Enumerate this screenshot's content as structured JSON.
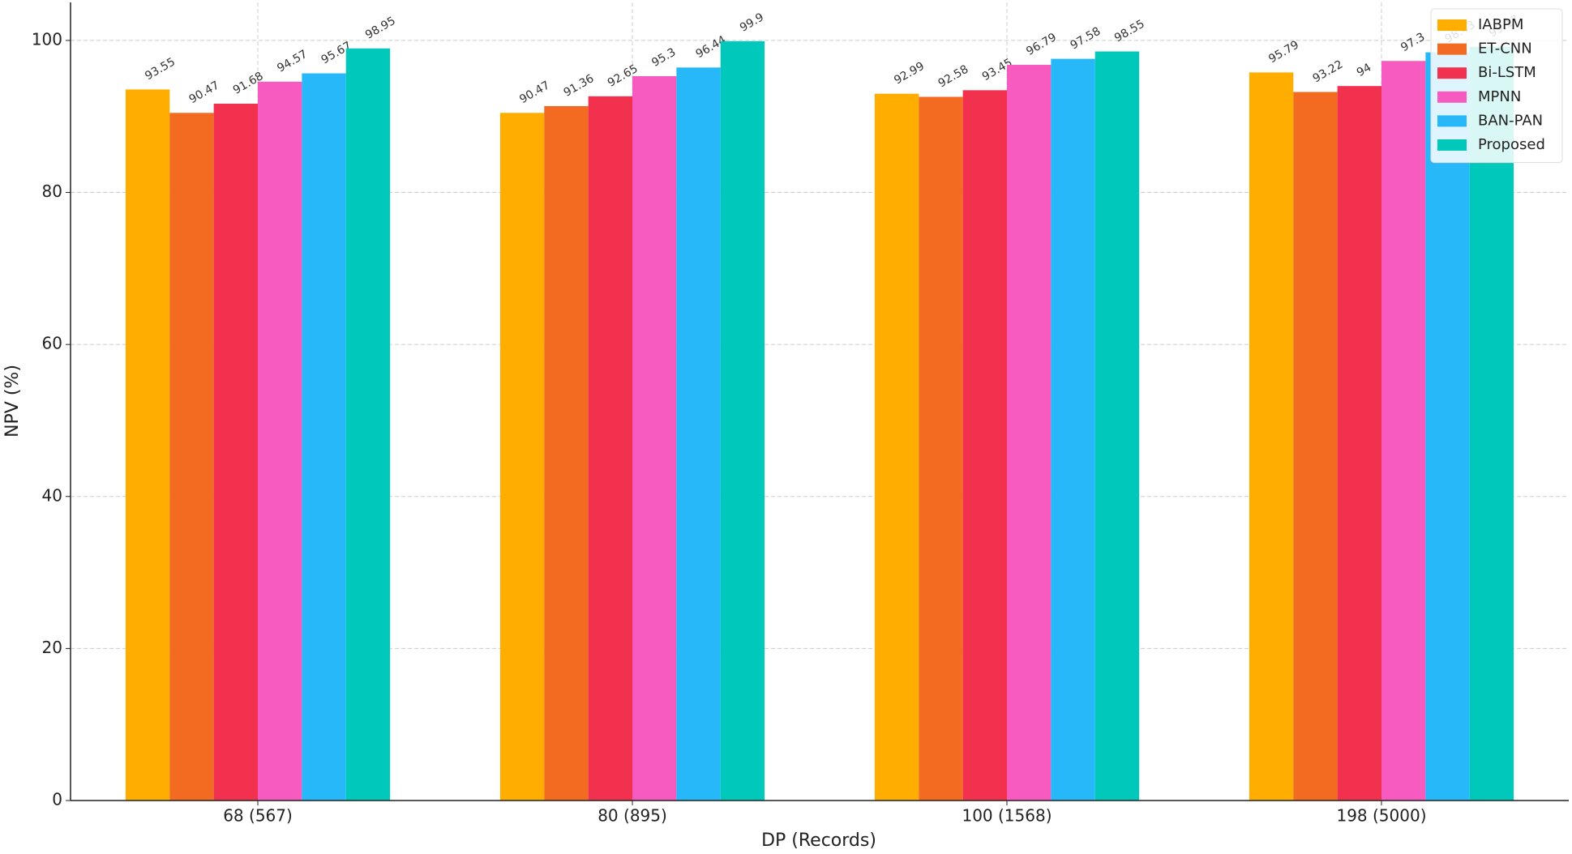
{
  "chart_data": {
    "type": "bar",
    "x_label": "DP (Records)",
    "y_label": "NPV (%)",
    "categories": [
      "68 (567)",
      "80 (895)",
      "100 (1568)",
      "198 (5000)"
    ],
    "series": [
      {
        "name": "IABPM",
        "color": "#ffae00",
        "values": [
          93.55,
          90.47,
          92.99,
          95.79
        ]
      },
      {
        "name": "ET-CNN",
        "color": "#f26b21",
        "values": [
          90.47,
          91.36,
          92.58,
          93.22
        ]
      },
      {
        "name": "Bi-LSTM",
        "color": "#f2314f",
        "values": [
          91.68,
          92.65,
          93.45,
          94
        ]
      },
      {
        "name": "MPNN",
        "color": "#f75bc0",
        "values": [
          94.57,
          95.3,
          96.79,
          97.3
        ]
      },
      {
        "name": "BAN-PAN",
        "color": "#27b8fa",
        "values": [
          95.67,
          96.44,
          97.58,
          98.43
        ]
      },
      {
        "name": "Proposed",
        "color": "#00c9bb",
        "values": [
          98.95,
          99.9,
          98.55,
          99.17
        ]
      }
    ],
    "ylim": [
      0,
      105
    ],
    "yticks": [
      0,
      20,
      40,
      60,
      80,
      100
    ],
    "grid": true,
    "legend": "upper right"
  }
}
